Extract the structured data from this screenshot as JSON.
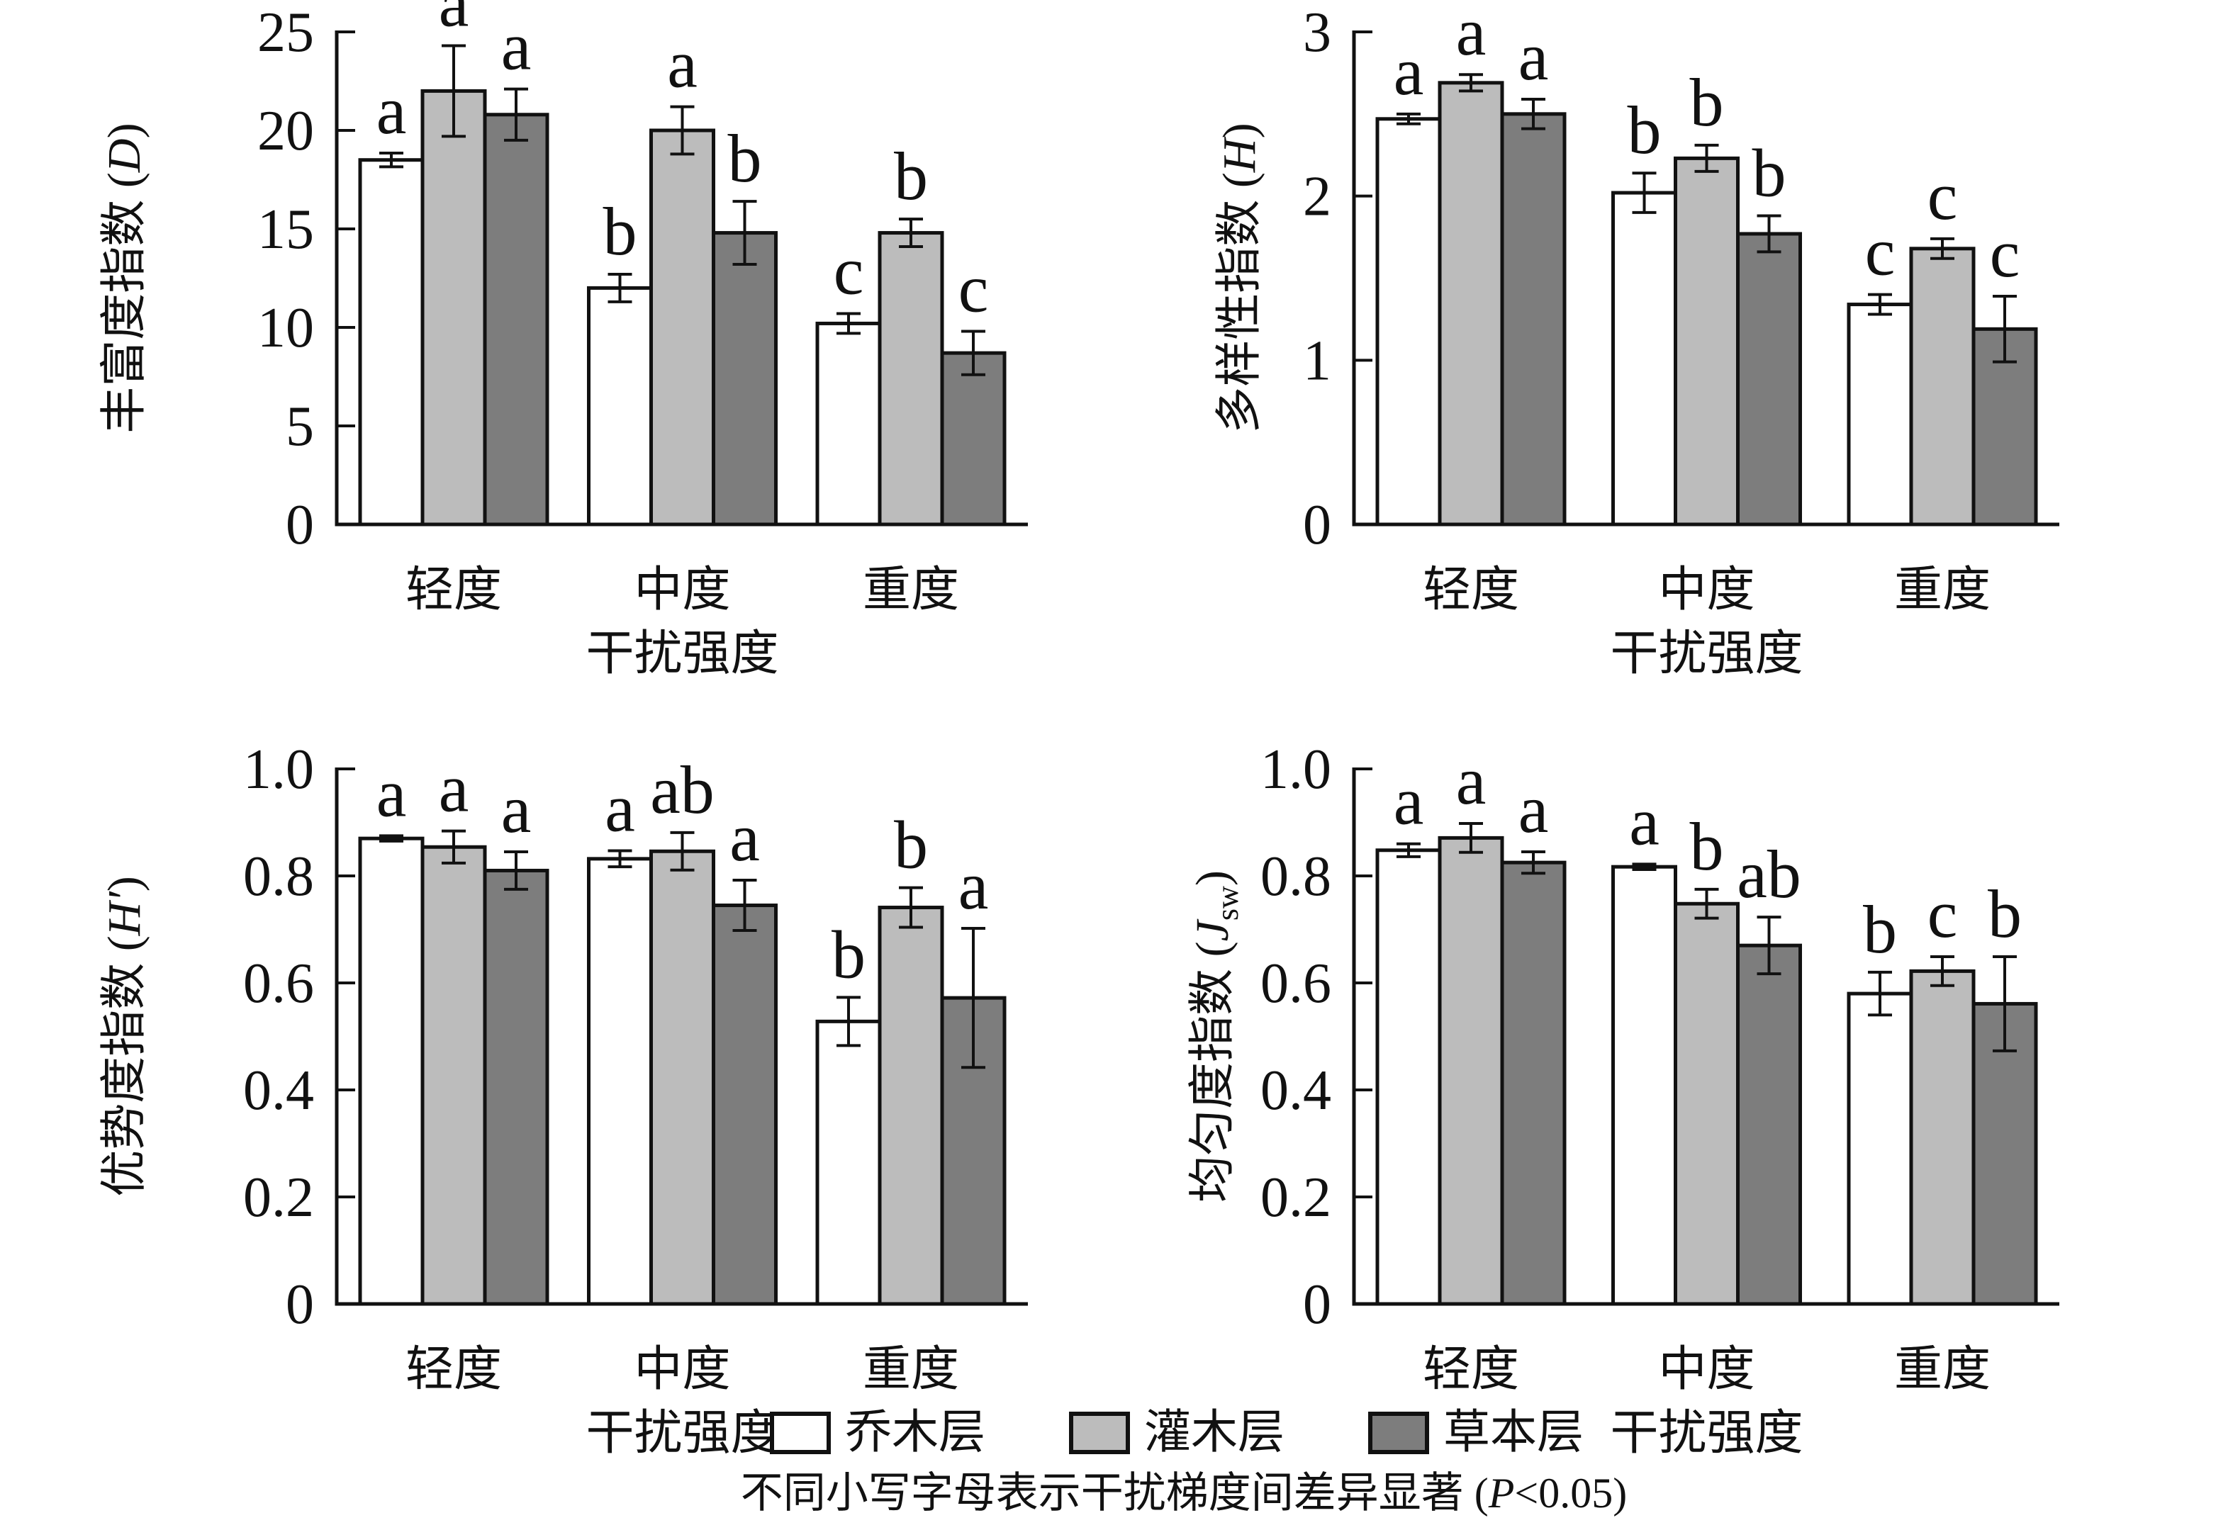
{
  "figure": {
    "legend": {
      "items": [
        {
          "label": "乔木层",
          "color": "#ffffff"
        },
        {
          "label": "灌木层",
          "color": "#bcbcbc"
        },
        {
          "label": "草本层",
          "color": "#7d7d7d"
        }
      ]
    },
    "caption": {
      "prefix": "不同小写字母表示干扰梯度间差异显著 (",
      "p_symbol": "P",
      "suffix": "<0.05)"
    }
  },
  "chart_data": [
    {
      "id": "richness-index",
      "type": "bar",
      "ylabel_text": "丰富度指数",
      "ylabel_symbol": "D",
      "ylabel_symbol_sub": "",
      "xlabel": "干扰强度",
      "categories": [
        "轻度",
        "中度",
        "重度"
      ],
      "ylim": [
        0,
        25
      ],
      "yticks": [
        0,
        5,
        10,
        15,
        20,
        25
      ],
      "ytick_labels": [
        "0",
        "5",
        "10",
        "15",
        "20",
        "25"
      ],
      "grid": false,
      "series": [
        {
          "name": "乔木层",
          "color": "#ffffff",
          "values": [
            18.5,
            12.0,
            10.2
          ],
          "errors": [
            0.35,
            0.7,
            0.5
          ],
          "letters": [
            "a",
            "b",
            "c"
          ]
        },
        {
          "name": "灌木层",
          "color": "#bcbcbc",
          "values": [
            22.0,
            20.0,
            14.8
          ],
          "errors": [
            2.3,
            1.2,
            0.7
          ],
          "letters": [
            "a",
            "a",
            "b"
          ]
        },
        {
          "name": "草本层",
          "color": "#7d7d7d",
          "values": [
            20.8,
            14.8,
            8.7
          ],
          "errors": [
            1.3,
            1.6,
            1.1
          ],
          "letters": [
            "a",
            "b",
            "c"
          ]
        }
      ]
    },
    {
      "id": "diversity-index",
      "type": "bar",
      "ylabel_text": "多样性指数",
      "ylabel_symbol": "H",
      "ylabel_symbol_sub": "",
      "xlabel": "干扰强度",
      "categories": [
        "轻度",
        "中度",
        "重度"
      ],
      "ylim": [
        0,
        3
      ],
      "yticks": [
        0,
        1,
        2,
        3
      ],
      "ytick_labels": [
        "0",
        "1",
        "2",
        "3"
      ],
      "grid": false,
      "series": [
        {
          "name": "乔木层",
          "color": "#ffffff",
          "values": [
            2.47,
            2.02,
            1.34
          ],
          "errors": [
            0.03,
            0.12,
            0.06
          ],
          "letters": [
            "a",
            "b",
            "c"
          ]
        },
        {
          "name": "灌木层",
          "color": "#bcbcbc",
          "values": [
            2.69,
            2.23,
            1.68
          ],
          "errors": [
            0.05,
            0.08,
            0.06
          ],
          "letters": [
            "a",
            "b",
            "c"
          ]
        },
        {
          "name": "草本层",
          "color": "#7d7d7d",
          "values": [
            2.5,
            1.77,
            1.19
          ],
          "errors": [
            0.09,
            0.11,
            0.2
          ],
          "letters": [
            "a",
            "b",
            "c"
          ]
        }
      ]
    },
    {
      "id": "dominance-index",
      "type": "bar",
      "ylabel_text": "优势度指数",
      "ylabel_symbol": "H′",
      "ylabel_symbol_sub": "",
      "xlabel": "干扰强度",
      "categories": [
        "轻度",
        "中度",
        "重度"
      ],
      "ylim": [
        0,
        1.0
      ],
      "yticks": [
        0,
        0.2,
        0.4,
        0.6,
        0.8,
        1.0
      ],
      "ytick_labels": [
        "0",
        "0.2",
        "0.4",
        "0.6",
        "0.8",
        "1.0"
      ],
      "grid": false,
      "series": [
        {
          "name": "乔木层",
          "color": "#ffffff",
          "values": [
            0.87,
            0.832,
            0.528
          ],
          "errors": [
            0.005,
            0.015,
            0.045
          ],
          "letters": [
            "a",
            "a",
            "b"
          ]
        },
        {
          "name": "灌木层",
          "color": "#bcbcbc",
          "values": [
            0.854,
            0.846,
            0.741
          ],
          "errors": [
            0.03,
            0.035,
            0.037
          ],
          "letters": [
            "a",
            "ab",
            "b"
          ]
        },
        {
          "name": "草本层",
          "color": "#7d7d7d",
          "values": [
            0.81,
            0.745,
            0.572
          ],
          "errors": [
            0.035,
            0.047,
            0.13
          ],
          "letters": [
            "a",
            "a",
            "a"
          ]
        }
      ]
    },
    {
      "id": "evenness-index",
      "type": "bar",
      "ylabel_text": "均匀度指数",
      "ylabel_symbol": "J",
      "ylabel_symbol_sub": "sw",
      "xlabel": "干扰强度",
      "categories": [
        "轻度",
        "中度",
        "重度"
      ],
      "ylim": [
        0,
        1.0
      ],
      "yticks": [
        0,
        0.2,
        0.4,
        0.6,
        0.8,
        1.0
      ],
      "ytick_labels": [
        "0",
        "0.2",
        "0.4",
        "0.6",
        "0.8",
        "1.0"
      ],
      "grid": false,
      "series": [
        {
          "name": "乔木层",
          "color": "#ffffff",
          "values": [
            0.848,
            0.817,
            0.58
          ],
          "errors": [
            0.012,
            0.005,
            0.04
          ],
          "letters": [
            "a",
            "a",
            "b"
          ]
        },
        {
          "name": "灌木层",
          "color": "#bcbcbc",
          "values": [
            0.871,
            0.748,
            0.622
          ],
          "errors": [
            0.027,
            0.027,
            0.027
          ],
          "letters": [
            "a",
            "b",
            "c"
          ]
        },
        {
          "name": "草本层",
          "color": "#7d7d7d",
          "values": [
            0.825,
            0.67,
            0.561
          ],
          "errors": [
            0.02,
            0.053,
            0.088
          ],
          "letters": [
            "a",
            "ab",
            "b"
          ]
        }
      ]
    }
  ]
}
